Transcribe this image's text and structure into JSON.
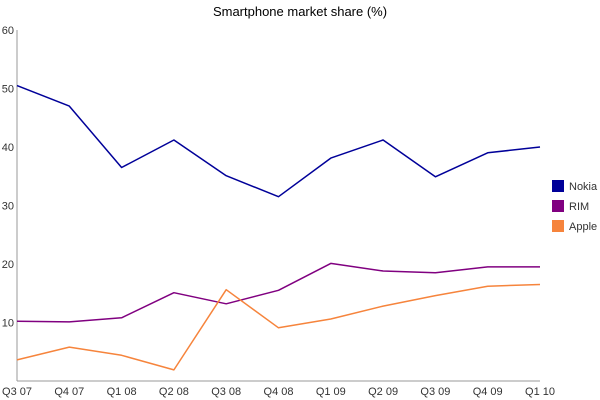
{
  "chart_data": {
    "type": "line",
    "title": "Smartphone market share (%)",
    "xlabel": "",
    "ylabel": "",
    "categories": [
      "Q3 07",
      "Q4 07",
      "Q1 08",
      "Q2 08",
      "Q3 08",
      "Q4 08",
      "Q1 09",
      "Q2 09",
      "Q3 09",
      "Q4 09",
      "Q1 10"
    ],
    "ylim": [
      0,
      60
    ],
    "yticks": [
      10,
      20,
      30,
      40,
      50,
      60
    ],
    "grid": false,
    "legend": "right",
    "series": [
      {
        "name": "Nokia",
        "color": "#000099",
        "values": [
          50.5,
          47.0,
          36.5,
          41.2,
          35.1,
          31.5,
          38.1,
          41.2,
          34.9,
          39.0,
          40.0
        ]
      },
      {
        "name": "RIM",
        "color": "#800080",
        "values": [
          10.2,
          10.1,
          10.8,
          15.1,
          13.2,
          15.5,
          20.1,
          18.8,
          18.5,
          19.5,
          19.5
        ]
      },
      {
        "name": "Apple",
        "color": "#f6843c",
        "values": [
          3.6,
          5.8,
          4.4,
          1.9,
          15.6,
          9.1,
          10.6,
          12.8,
          14.6,
          16.2,
          16.5
        ]
      }
    ]
  }
}
